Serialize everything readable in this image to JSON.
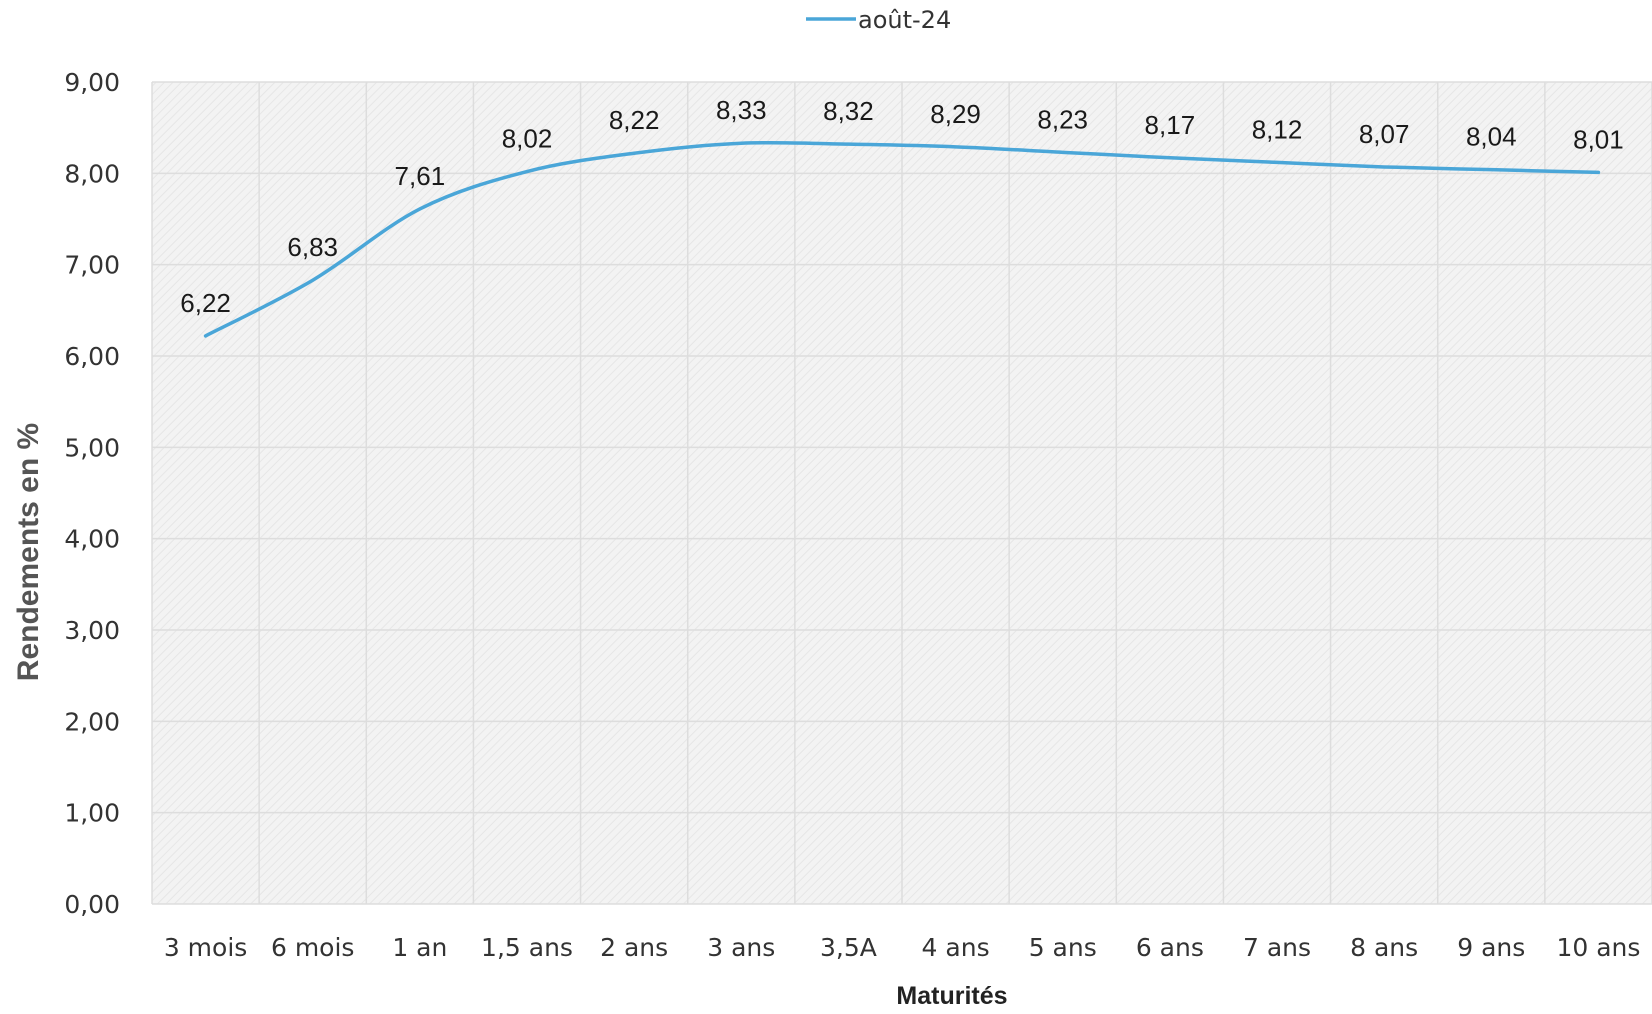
{
  "chart_data": {
    "type": "line",
    "categories": [
      "3 mois",
      "6 mois",
      "1 an",
      "1,5 ans",
      "2 ans",
      "3 ans",
      "3,5A",
      "4 ans",
      "5 ans",
      "6 ans",
      "7 ans",
      "8 ans",
      "9 ans",
      "10 ans"
    ],
    "series": [
      {
        "name": "août-24",
        "values": [
          6.22,
          6.83,
          7.61,
          8.02,
          8.22,
          8.33,
          8.32,
          8.29,
          8.23,
          8.17,
          8.12,
          8.07,
          8.04,
          8.01
        ],
        "data_labels": [
          "6,22",
          "6,83",
          "7,61",
          "8,02",
          "8,22",
          "8,33",
          "8,32",
          "8,29",
          "8,23",
          "8,17",
          "8,12",
          "8,07",
          "8,04",
          "8,01"
        ],
        "color": "#4aa6d8"
      }
    ],
    "y_ticks": [
      "0,00",
      "1,00",
      "2,00",
      "3,00",
      "4,00",
      "5,00",
      "6,00",
      "7,00",
      "8,00",
      "9,00"
    ],
    "ylim": [
      0,
      9
    ],
    "xlabel": "Maturités",
    "ylabel": "Rendements en %",
    "legend_position": "top-center",
    "grid": true,
    "plot_background": "#f1f1f1",
    "grid_color": "#dddddd"
  }
}
